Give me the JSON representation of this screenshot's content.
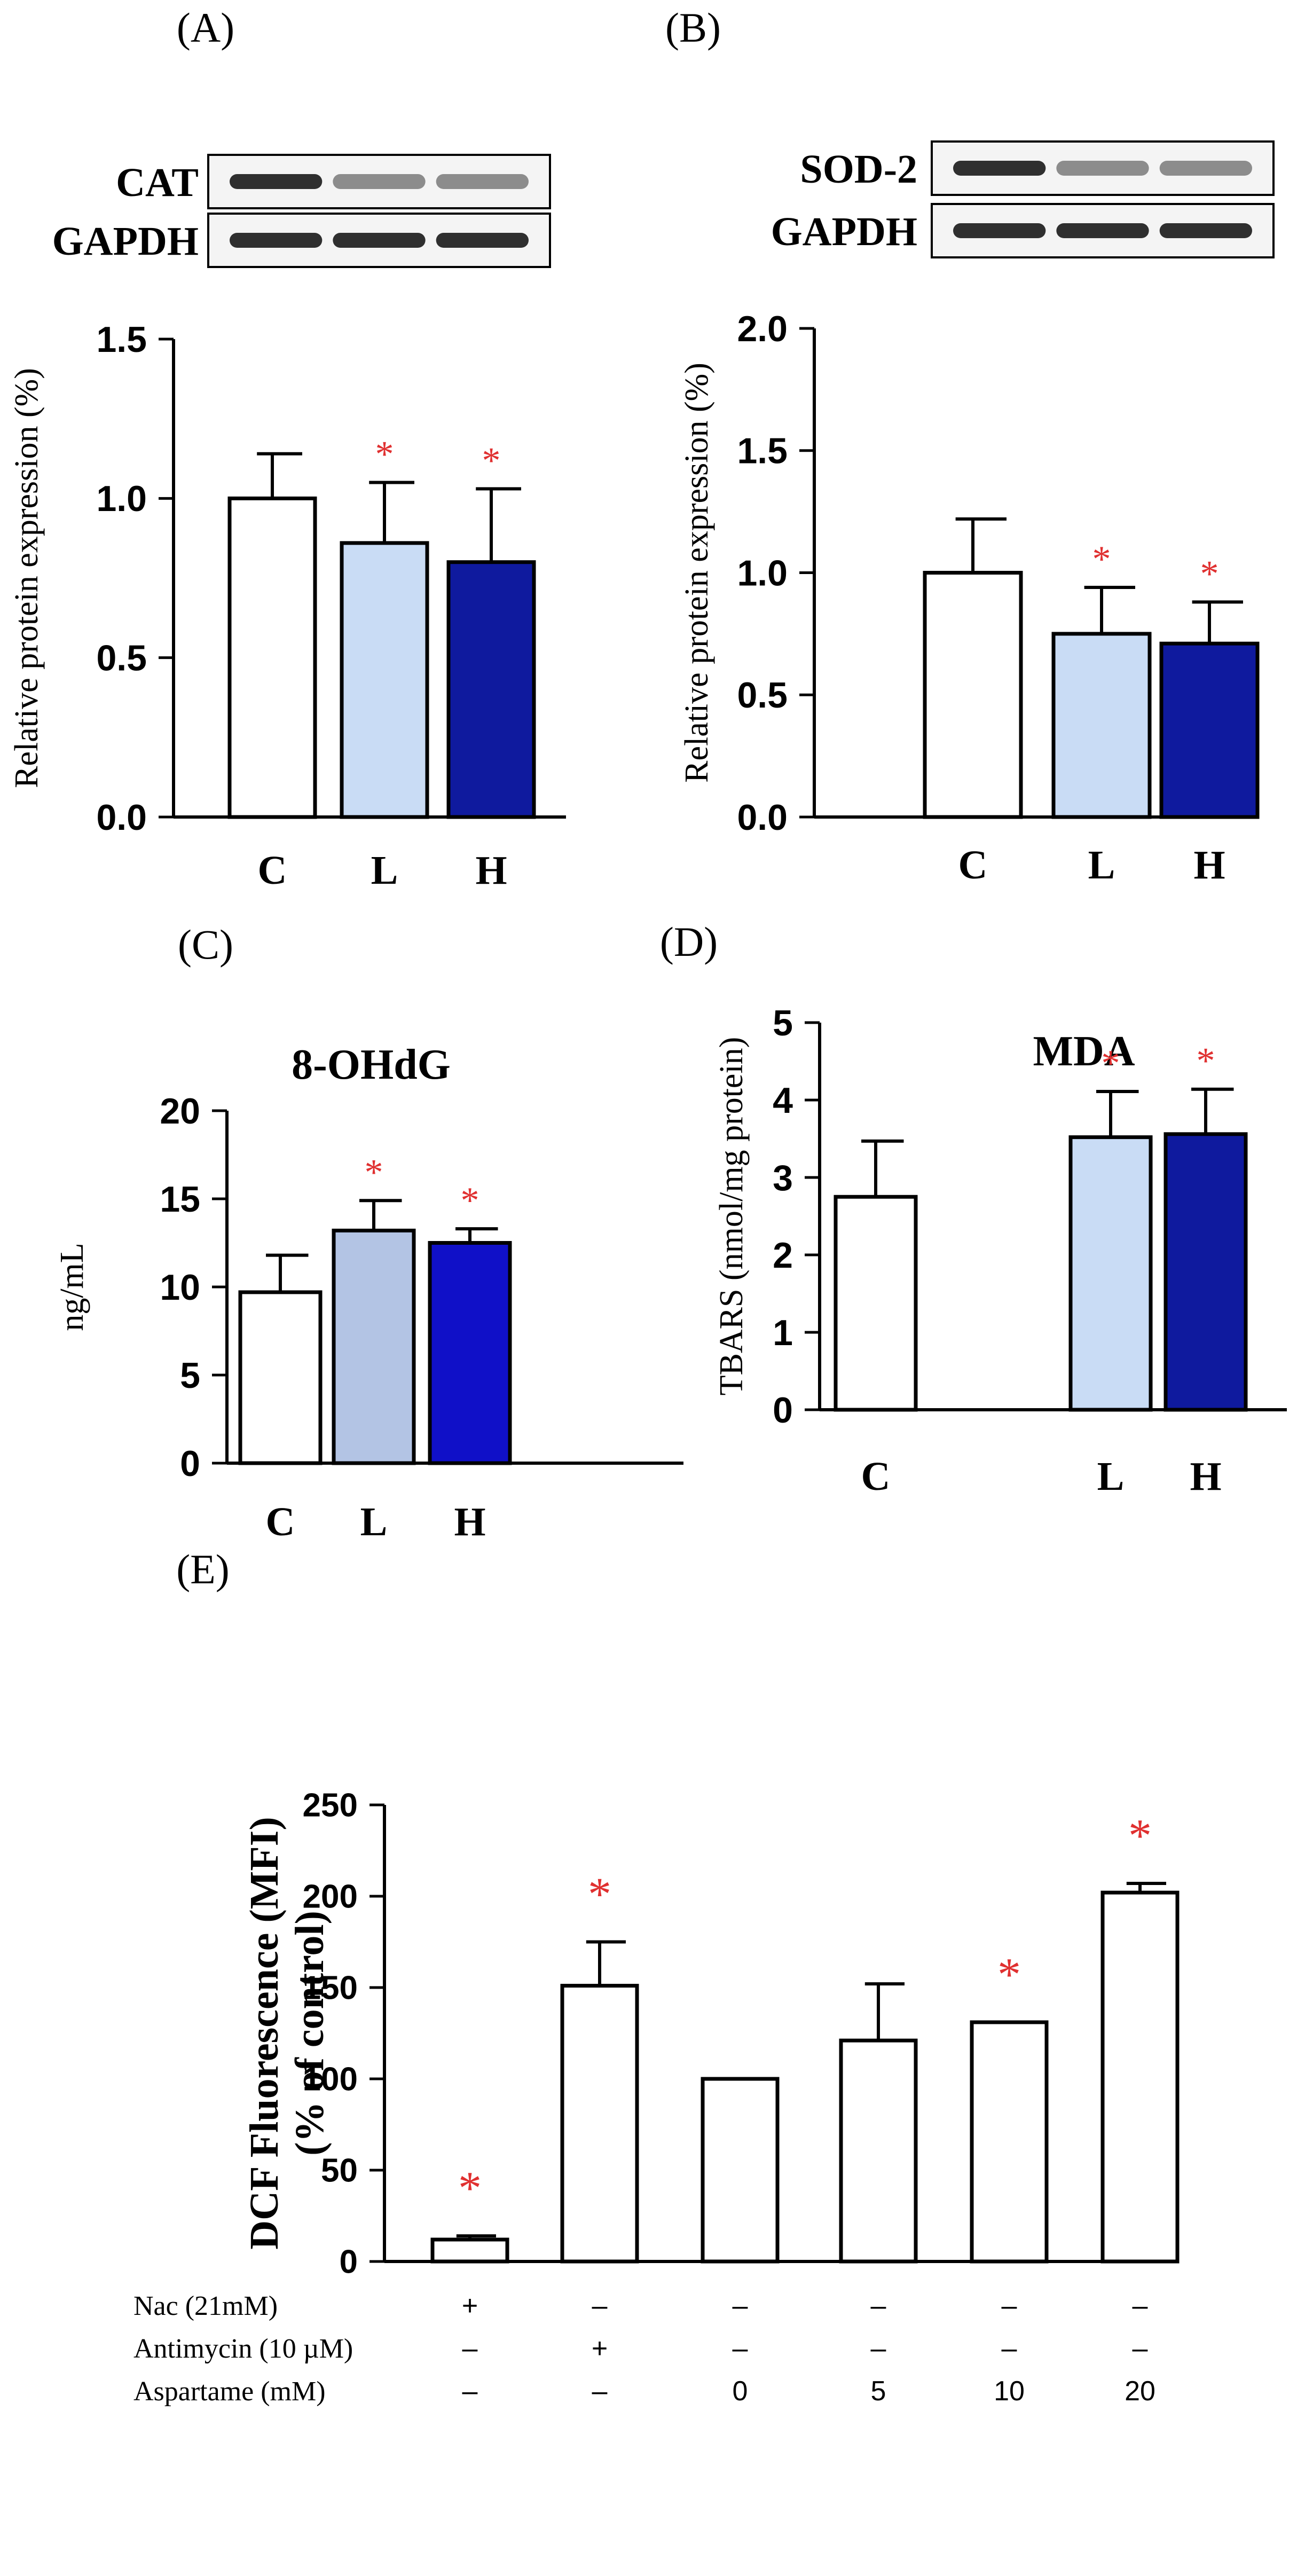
{
  "colors": {
    "white_bar": "#ffffff",
    "light_blue": "#c9dcf5",
    "steel_blue": "#b3c4e4",
    "dark_blue": "#0f1a9e",
    "royal_blue": "#1010c8",
    "star": "#e03030",
    "ink": "#000000"
  },
  "chart_data": [
    {
      "panel": "(A)",
      "type": "bar",
      "blots": [
        {
          "label": "CAT",
          "bands": 3
        },
        {
          "label": "GAPDH",
          "bands": 3
        }
      ],
      "categories": [
        "C",
        "L",
        "H"
      ],
      "values": [
        1.0,
        0.86,
        0.8
      ],
      "errors": [
        0.14,
        0.19,
        0.23
      ],
      "significant": [
        false,
        true,
        true
      ],
      "bar_colors": [
        "#ffffff",
        "#c9dcf5",
        "#0f1a9e"
      ],
      "ylabel": "Relative  protein expression  (%)",
      "ylim": [
        0,
        1.5
      ],
      "yticks": [
        0.0,
        0.5,
        1.0,
        1.5
      ],
      "ytick_labels": [
        "0.0",
        "0.5",
        "1.0",
        "1.5"
      ]
    },
    {
      "panel": "(B)",
      "type": "bar",
      "blots": [
        {
          "label": "SOD-2",
          "bands": 3
        },
        {
          "label": "GAPDH",
          "bands": 3
        }
      ],
      "categories": [
        "C",
        "L",
        "H"
      ],
      "values": [
        1.0,
        0.75,
        0.71
      ],
      "errors": [
        0.22,
        0.19,
        0.17
      ],
      "significant": [
        false,
        true,
        true
      ],
      "bar_colors": [
        "#ffffff",
        "#c9dcf5",
        "#0f1a9e"
      ],
      "ylabel": "Relative  protein  expression  (%)",
      "ylim": [
        0,
        2.0
      ],
      "yticks": [
        0.0,
        0.5,
        1.0,
        1.5,
        2.0
      ],
      "ytick_labels": [
        "0.0",
        "0.5",
        "1.0",
        "1.5",
        "2.0"
      ]
    },
    {
      "panel": "(C)",
      "type": "bar",
      "title": "8-OHdG",
      "categories": [
        "C",
        "L",
        "H"
      ],
      "values": [
        9.7,
        13.2,
        12.5
      ],
      "errors": [
        2.1,
        1.7,
        0.8
      ],
      "significant": [
        false,
        true,
        true
      ],
      "bar_colors": [
        "#ffffff",
        "#b3c4e4",
        "#1010c8"
      ],
      "ylabel": "ng/mL",
      "ylim": [
        0,
        20
      ],
      "yticks": [
        0,
        5,
        10,
        15,
        20
      ],
      "ytick_labels": [
        "0",
        "5",
        "10",
        "15",
        "20"
      ]
    },
    {
      "panel": "(D)",
      "type": "bar",
      "title": "MDA",
      "categories": [
        "C",
        "L",
        "H"
      ],
      "values": [
        2.75,
        3.52,
        3.56
      ],
      "errors": [
        0.72,
        0.59,
        0.58
      ],
      "significant": [
        false,
        true,
        true
      ],
      "bar_colors": [
        "#ffffff",
        "#c9dcf5",
        "#0f1a9e"
      ],
      "ylabel": "TBARS  (nmol/mg  protein)",
      "ylim": [
        0,
        5
      ],
      "yticks": [
        0,
        1,
        2,
        3,
        4,
        5
      ],
      "ytick_labels": [
        "0",
        "1",
        "2",
        "3",
        "4",
        "5"
      ]
    },
    {
      "panel": "(E)",
      "type": "bar",
      "categories": [
        "Nac",
        "Antimycin",
        "Aspartame 0",
        "Aspartame 5",
        "Aspartame 10",
        "Aspartame 20"
      ],
      "values": [
        12,
        151,
        100,
        121,
        131,
        202
      ],
      "errors": [
        2,
        24,
        0,
        31,
        0,
        5
      ],
      "significant": [
        true,
        true,
        false,
        false,
        true,
        true
      ],
      "bar_colors": [
        "#ffffff",
        "#ffffff",
        "#ffffff",
        "#ffffff",
        "#ffffff",
        "#ffffff"
      ],
      "ylabel_lines": [
        "DCF Fluorescence (MFI)",
        "(% of control)"
      ],
      "ylim": [
        0,
        250
      ],
      "yticks": [
        0,
        50,
        100,
        150,
        200,
        250
      ],
      "ytick_labels": [
        "0",
        "50",
        "100",
        "150",
        "200",
        "250"
      ],
      "treatment_table": [
        {
          "label": "Nac (21mM)",
          "values": [
            "+",
            "–",
            "–",
            "–",
            "–",
            "–"
          ]
        },
        {
          "label": "Antimycin (10 µM)",
          "values": [
            "–",
            "+",
            "–",
            "–",
            "–",
            "–"
          ]
        },
        {
          "label": "Aspartame (mM)",
          "values": [
            "–",
            "–",
            "0",
            "5",
            "10",
            "20"
          ]
        }
      ]
    }
  ]
}
